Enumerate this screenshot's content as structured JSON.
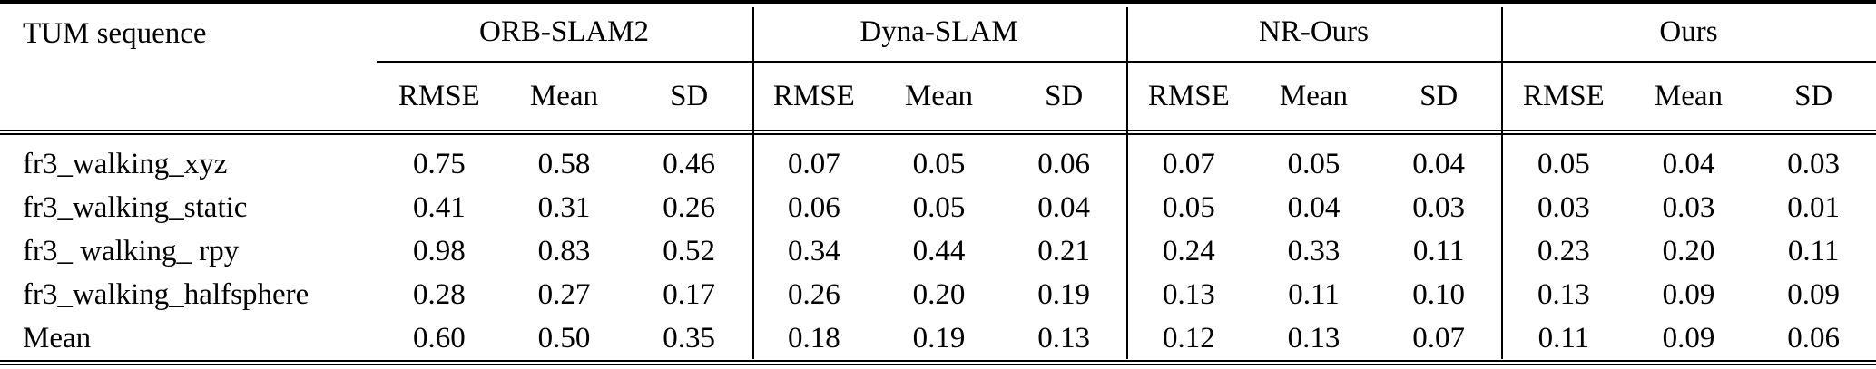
{
  "table": {
    "corner_label": "TUM sequence",
    "groups": [
      "ORB-SLAM2",
      "Dyna-SLAM",
      "NR-Ours",
      "Ours"
    ],
    "metrics": [
      "RMSE",
      "Mean",
      "SD"
    ],
    "rows": [
      {
        "name": "fr3_walking_xyz",
        "cells": [
          "0.75",
          "0.58",
          "0.46",
          "0.07",
          "0.05",
          "0.06",
          "0.07",
          "0.05",
          "0.04",
          "0.05",
          "0.04",
          "0.03"
        ]
      },
      {
        "name": "fr3_walking_static",
        "cells": [
          "0.41",
          "0.31",
          "0.26",
          "0.06",
          "0.05",
          "0.04",
          "0.05",
          "0.04",
          "0.03",
          "0.03",
          "0.03",
          "0.01"
        ]
      },
      {
        "name": "fr3_ walking_ rpy",
        "cells": [
          "0.98",
          "0.83",
          "0.52",
          "0.34",
          "0.44",
          "0.21",
          "0.24",
          "0.33",
          "0.11",
          "0.23",
          "0.20",
          "0.11"
        ]
      },
      {
        "name": "fr3_walking_halfsphere",
        "cells": [
          "0.28",
          "0.27",
          "0.17",
          "0.26",
          "0.20",
          "0.19",
          "0.13",
          "0.11",
          "0.10",
          "0.13",
          "0.09",
          "0.09"
        ]
      },
      {
        "name": "Mean",
        "cells": [
          "0.60",
          "0.50",
          "0.35",
          "0.18",
          "0.19",
          "0.13",
          "0.12",
          "0.13",
          "0.07",
          "0.11",
          "0.09",
          "0.06"
        ]
      }
    ]
  },
  "chart_data": {
    "type": "table",
    "title": "",
    "row_header": "TUM sequence",
    "column_groups": [
      "ORB-SLAM2",
      "Dyna-SLAM",
      "NR-Ours",
      "Ours"
    ],
    "sub_columns": [
      "RMSE",
      "Mean",
      "SD"
    ],
    "rows": [
      {
        "sequence": "fr3_walking_xyz",
        "ORB-SLAM2": [
          0.75,
          0.58,
          0.46
        ],
        "Dyna-SLAM": [
          0.07,
          0.05,
          0.06
        ],
        "NR-Ours": [
          0.07,
          0.05,
          0.04
        ],
        "Ours": [
          0.05,
          0.04,
          0.03
        ]
      },
      {
        "sequence": "fr3_walking_static",
        "ORB-SLAM2": [
          0.41,
          0.31,
          0.26
        ],
        "Dyna-SLAM": [
          0.06,
          0.05,
          0.04
        ],
        "NR-Ours": [
          0.05,
          0.04,
          0.03
        ],
        "Ours": [
          0.03,
          0.03,
          0.01
        ]
      },
      {
        "sequence": "fr3_ walking_ rpy",
        "ORB-SLAM2": [
          0.98,
          0.83,
          0.52
        ],
        "Dyna-SLAM": [
          0.34,
          0.44,
          0.21
        ],
        "NR-Ours": [
          0.24,
          0.33,
          0.11
        ],
        "Ours": [
          0.23,
          0.2,
          0.11
        ]
      },
      {
        "sequence": "fr3_walking_halfsphere",
        "ORB-SLAM2": [
          0.28,
          0.27,
          0.17
        ],
        "Dyna-SLAM": [
          0.26,
          0.2,
          0.19
        ],
        "NR-Ours": [
          0.13,
          0.11,
          0.1
        ],
        "Ours": [
          0.13,
          0.09,
          0.09
        ]
      },
      {
        "sequence": "Mean",
        "ORB-SLAM2": [
          0.6,
          0.5,
          0.35
        ],
        "Dyna-SLAM": [
          0.18,
          0.19,
          0.13
        ],
        "NR-Ours": [
          0.12,
          0.13,
          0.07
        ],
        "Ours": [
          0.11,
          0.09,
          0.06
        ]
      }
    ]
  }
}
